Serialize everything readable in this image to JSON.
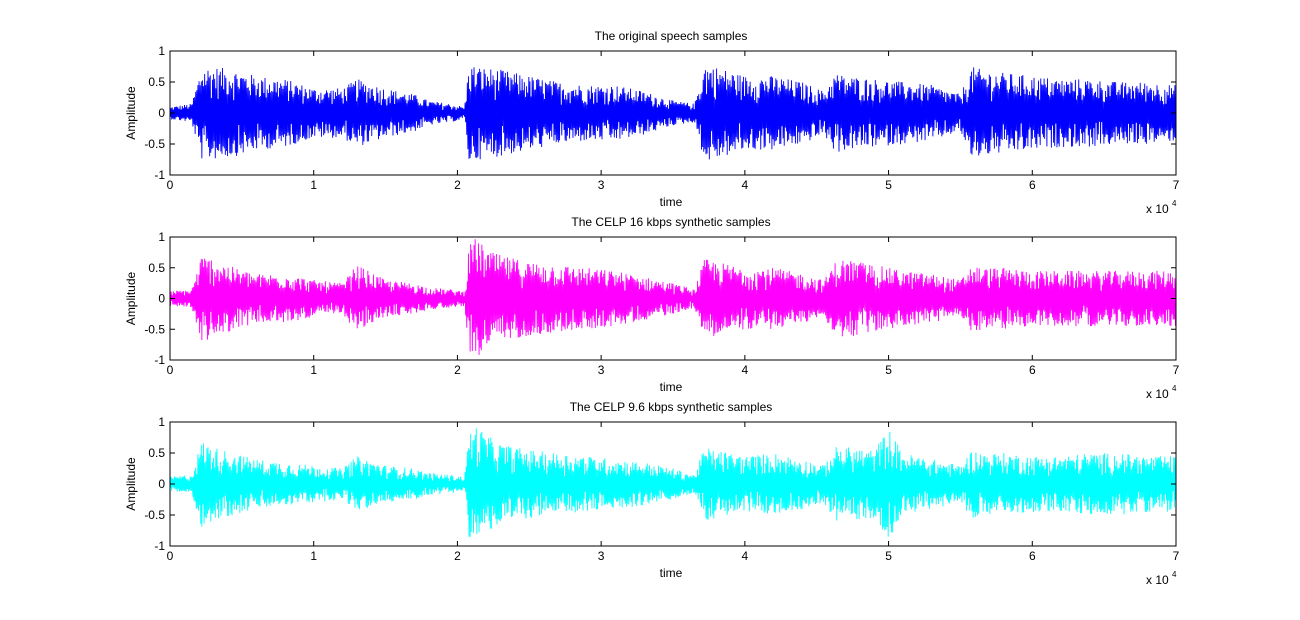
{
  "chart_data": [
    {
      "type": "line",
      "title": "The original speech samples",
      "xlabel": "time",
      "ylabel": "Amplitude",
      "xlim": [
        0,
        70000
      ],
      "ylim": [
        -1,
        1
      ],
      "x_ticks": [
        0,
        1,
        2,
        3,
        4,
        5,
        6,
        7
      ],
      "y_ticks": [
        -1,
        -0.5,
        0,
        0.5,
        1
      ],
      "x_multiplier": "x 10",
      "x_multiplier_exp": "4",
      "color": "#0000ff",
      "series": [
        {
          "envelope_x": [
            0,
            1500,
            2200,
            3000,
            4500,
            6000,
            8000,
            10000,
            12000,
            13000,
            15000,
            17000,
            18000,
            19500,
            20500,
            20800,
            21500,
            23000,
            25000,
            27000,
            29000,
            31000,
            33000,
            35000,
            36500,
            37200,
            38000,
            40000,
            42000,
            44000,
            45500,
            46300,
            47000,
            49000,
            51000,
            53000,
            55000,
            55800,
            56500,
            58000,
            60000,
            62000,
            64000,
            66000,
            68000,
            70000
          ],
          "envelope_y": [
            0.1,
            0.15,
            0.75,
            0.75,
            0.7,
            0.6,
            0.55,
            0.4,
            0.4,
            0.55,
            0.4,
            0.3,
            0.2,
            0.15,
            0.1,
            0.8,
            0.75,
            0.7,
            0.6,
            0.5,
            0.45,
            0.45,
            0.35,
            0.2,
            0.15,
            0.8,
            0.75,
            0.6,
            0.6,
            0.5,
            0.35,
            0.65,
            0.6,
            0.55,
            0.5,
            0.45,
            0.3,
            0.75,
            0.7,
            0.65,
            0.6,
            0.55,
            0.55,
            0.5,
            0.5,
            0.45
          ]
        }
      ]
    },
    {
      "type": "line",
      "title": "The CELP 16 kbps synthetic samples",
      "xlabel": "time",
      "ylabel": "Amplitude",
      "xlim": [
        0,
        70000
      ],
      "ylim": [
        -1,
        1
      ],
      "x_ticks": [
        0,
        1,
        2,
        3,
        4,
        5,
        6,
        7
      ],
      "y_ticks": [
        -1,
        -0.5,
        0,
        0.5,
        1
      ],
      "x_multiplier": "x 10",
      "x_multiplier_exp": "4",
      "color": "#ff00ff",
      "series": [
        {
          "envelope_x": [
            0,
            1500,
            2200,
            3000,
            4500,
            6000,
            8000,
            10000,
            12000,
            13000,
            15000,
            17000,
            18000,
            19500,
            20500,
            20800,
            21300,
            22000,
            23000,
            25000,
            27000,
            29000,
            31000,
            33000,
            35000,
            36500,
            37200,
            38000,
            40000,
            42000,
            44000,
            45500,
            46300,
            47000,
            49000,
            51000,
            53000,
            55000,
            55800,
            56500,
            58000,
            60000,
            62000,
            64000,
            66000,
            68000,
            70000
          ],
          "envelope_y": [
            0.12,
            0.15,
            0.7,
            0.65,
            0.5,
            0.4,
            0.4,
            0.3,
            0.25,
            0.55,
            0.3,
            0.25,
            0.18,
            0.15,
            0.12,
            0.85,
            1.0,
            0.8,
            0.7,
            0.6,
            0.55,
            0.5,
            0.45,
            0.35,
            0.25,
            0.15,
            0.65,
            0.6,
            0.5,
            0.5,
            0.4,
            0.3,
            0.6,
            0.65,
            0.55,
            0.45,
            0.4,
            0.3,
            0.55,
            0.5,
            0.5,
            0.45,
            0.45,
            0.45,
            0.45,
            0.45,
            0.45
          ]
        }
      ]
    },
    {
      "type": "line",
      "title": "The CELP 9.6 kbps synthetic samples",
      "xlabel": "time",
      "ylabel": "Amplitude",
      "xlim": [
        0,
        70000
      ],
      "ylim": [
        -1,
        1
      ],
      "x_ticks": [
        0,
        1,
        2,
        3,
        4,
        5,
        6,
        7
      ],
      "y_ticks": [
        -1,
        -0.5,
        0,
        0.5,
        1
      ],
      "x_multiplier": "x 10",
      "x_multiplier_exp": "4",
      "color": "#00ffff",
      "series": [
        {
          "envelope_x": [
            0,
            1500,
            2200,
            3000,
            4500,
            6000,
            8000,
            10000,
            12000,
            13000,
            15000,
            17000,
            18000,
            19500,
            20500,
            20800,
            21300,
            22000,
            23000,
            25000,
            27000,
            29000,
            31000,
            33000,
            35000,
            36500,
            37200,
            38000,
            40000,
            42000,
            44000,
            45500,
            46300,
            47000,
            49000,
            50000,
            51000,
            53000,
            55000,
            55800,
            56500,
            58000,
            60000,
            62000,
            64000,
            66000,
            68000,
            70000
          ],
          "envelope_y": [
            0.12,
            0.15,
            0.7,
            0.6,
            0.5,
            0.4,
            0.35,
            0.3,
            0.25,
            0.45,
            0.3,
            0.25,
            0.18,
            0.15,
            0.12,
            0.85,
            0.95,
            0.8,
            0.65,
            0.55,
            0.5,
            0.45,
            0.4,
            0.35,
            0.25,
            0.15,
            0.6,
            0.55,
            0.45,
            0.5,
            0.4,
            0.3,
            0.6,
            0.6,
            0.55,
            0.9,
            0.5,
            0.4,
            0.3,
            0.55,
            0.5,
            0.5,
            0.45,
            0.45,
            0.5,
            0.5,
            0.45,
            0.45
          ]
        }
      ]
    }
  ]
}
